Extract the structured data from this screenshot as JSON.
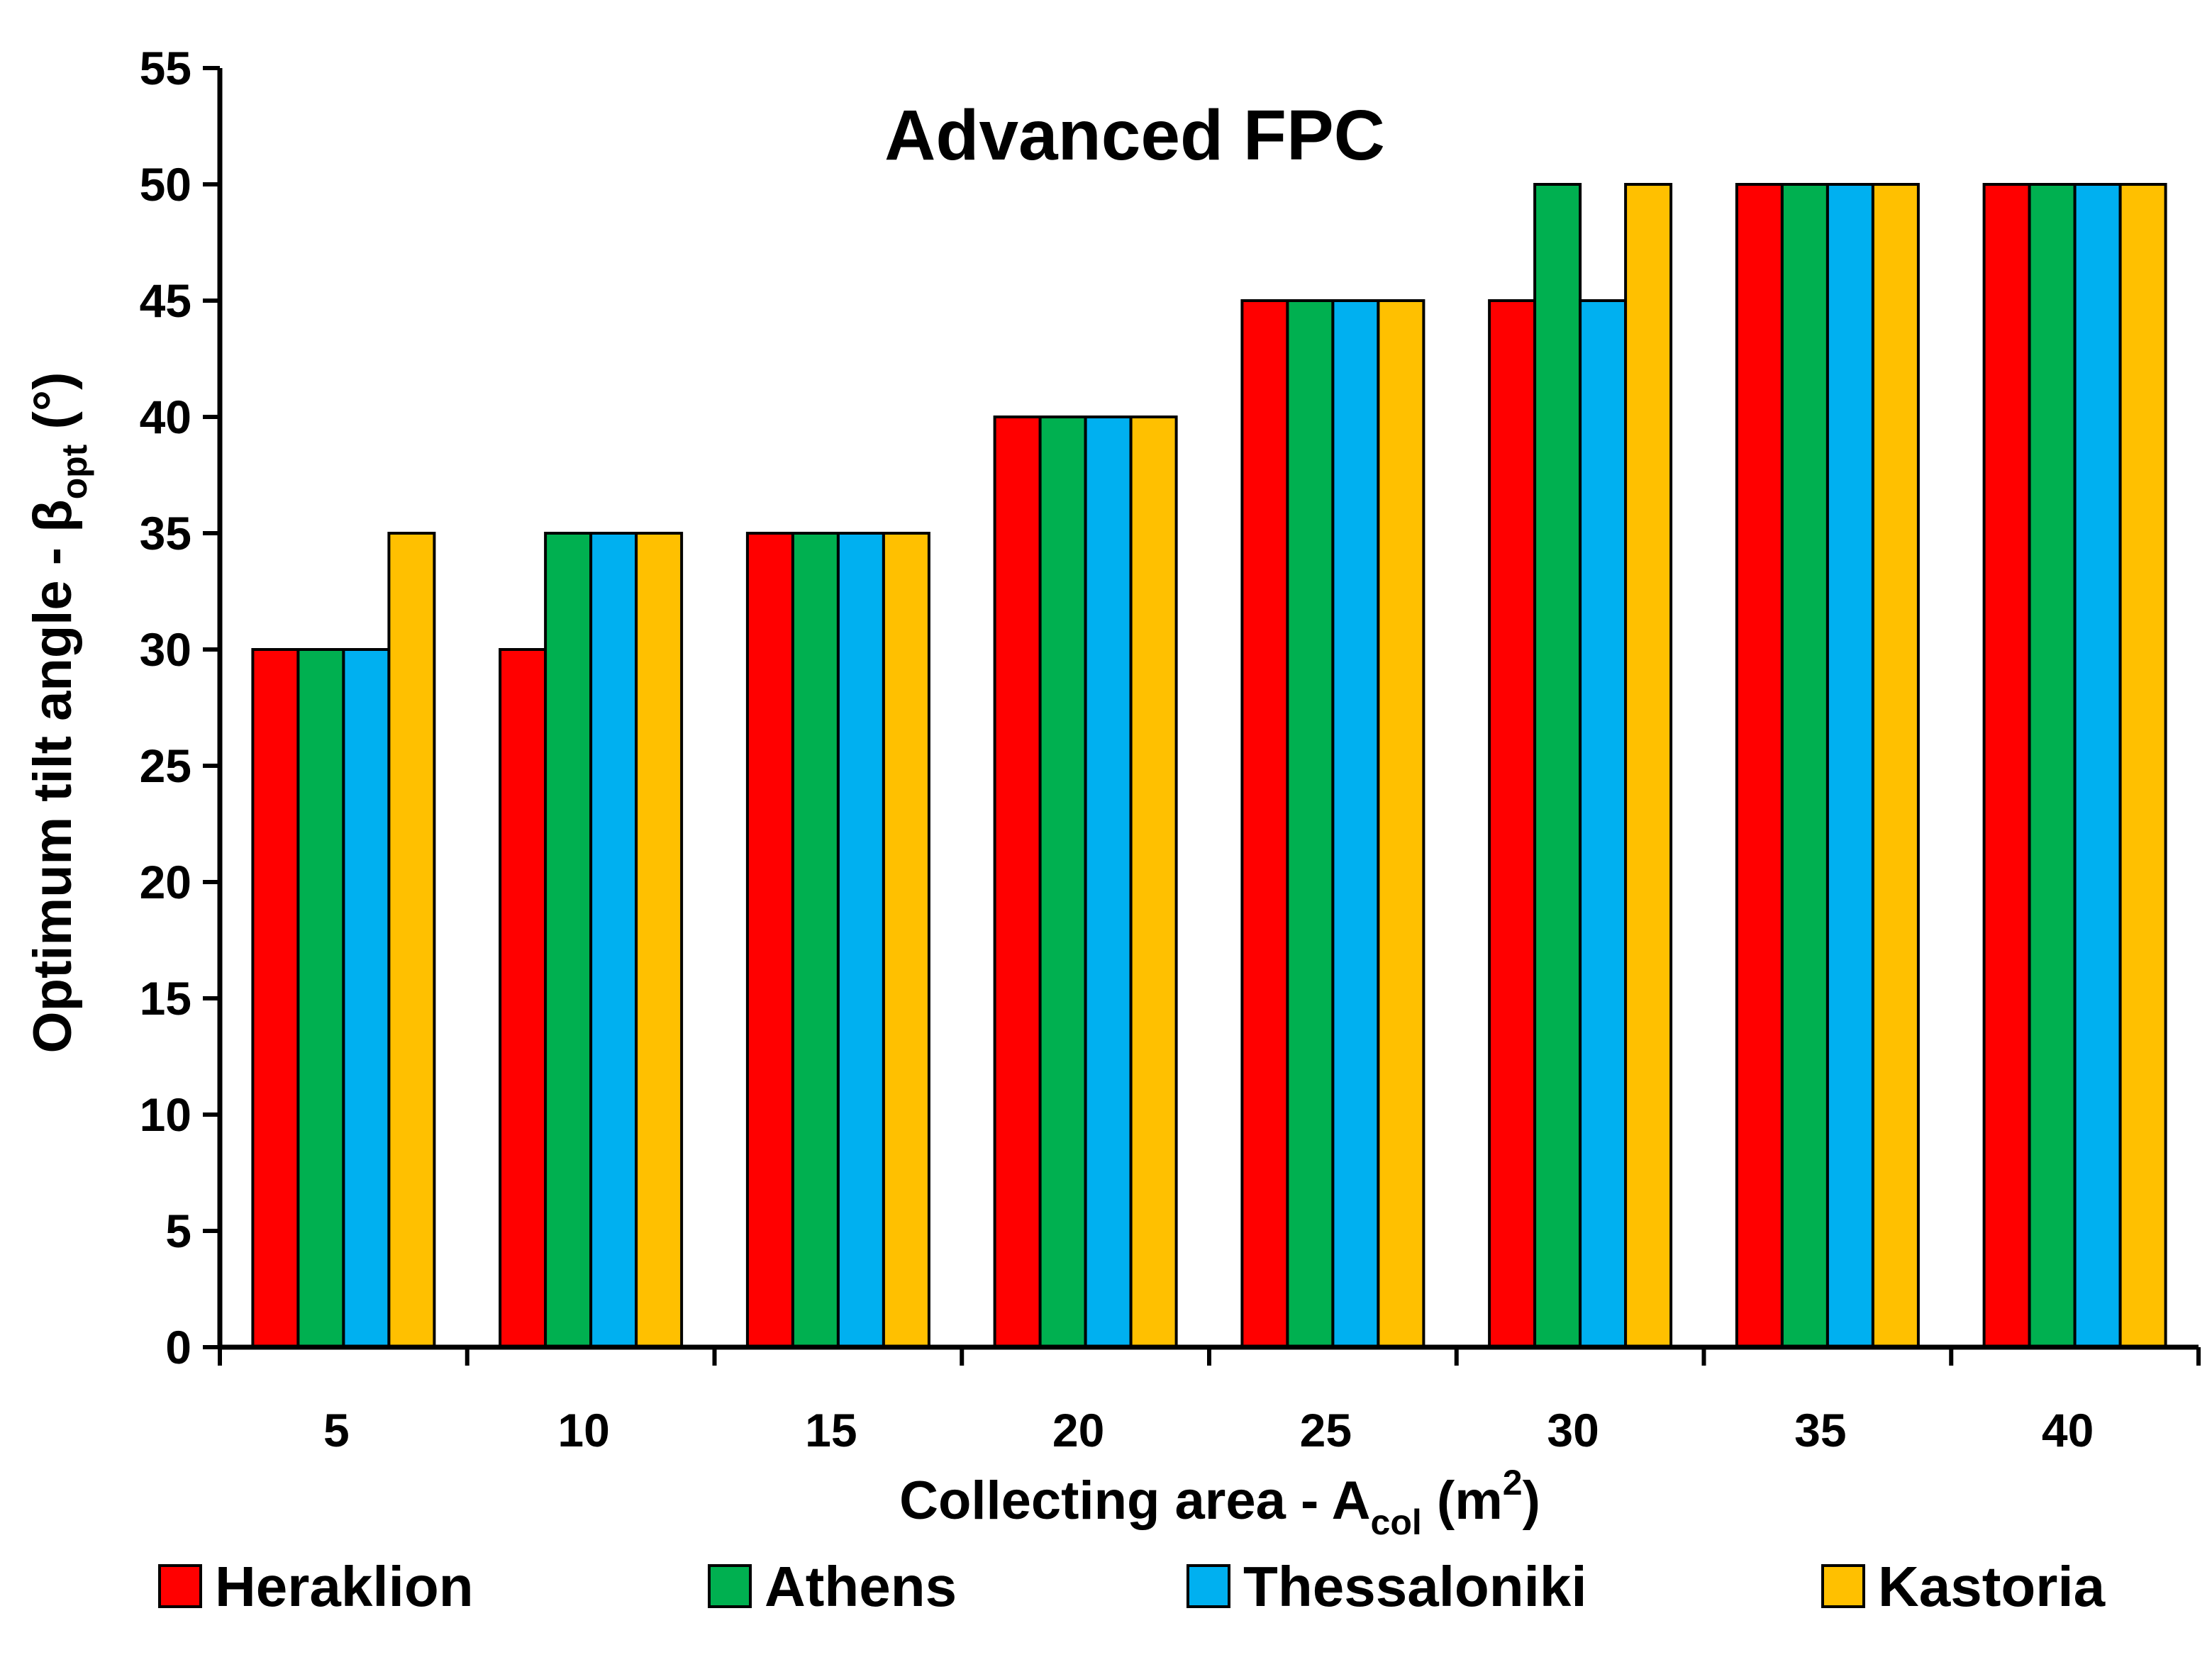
{
  "chart_data": {
    "type": "bar",
    "title": "Advanced FPC",
    "xlabel": {
      "main": "Collecting area - A",
      "sub": "col",
      "unit_open": " (m",
      "sup": "2",
      "unit_close": ")"
    },
    "ylabel": {
      "main": "Optimum tilt angle - β",
      "sub": "opt",
      "unit": " (°)"
    },
    "categories": [
      "5",
      "10",
      "15",
      "20",
      "25",
      "30",
      "35",
      "40"
    ],
    "ylim": [
      0,
      55
    ],
    "yticks": [
      "0",
      "5",
      "10",
      "15",
      "20",
      "25",
      "30",
      "35",
      "40",
      "45",
      "50",
      "55"
    ],
    "grid": false,
    "legend_position": "bottom",
    "series": [
      {
        "name": "Heraklion",
        "color": "#ff0000",
        "values": [
          30,
          30,
          35,
          40,
          45,
          45,
          50,
          50
        ]
      },
      {
        "name": "Athens",
        "color": "#00b050",
        "values": [
          30,
          35,
          35,
          40,
          45,
          50,
          50,
          50
        ]
      },
      {
        "name": "Thessaloniki",
        "color": "#00b0f0",
        "values": [
          30,
          35,
          35,
          40,
          45,
          45,
          50,
          50
        ]
      },
      {
        "name": "Kastoria",
        "color": "#ffc000",
        "values": [
          35,
          35,
          35,
          40,
          45,
          50,
          50,
          50
        ]
      }
    ]
  }
}
